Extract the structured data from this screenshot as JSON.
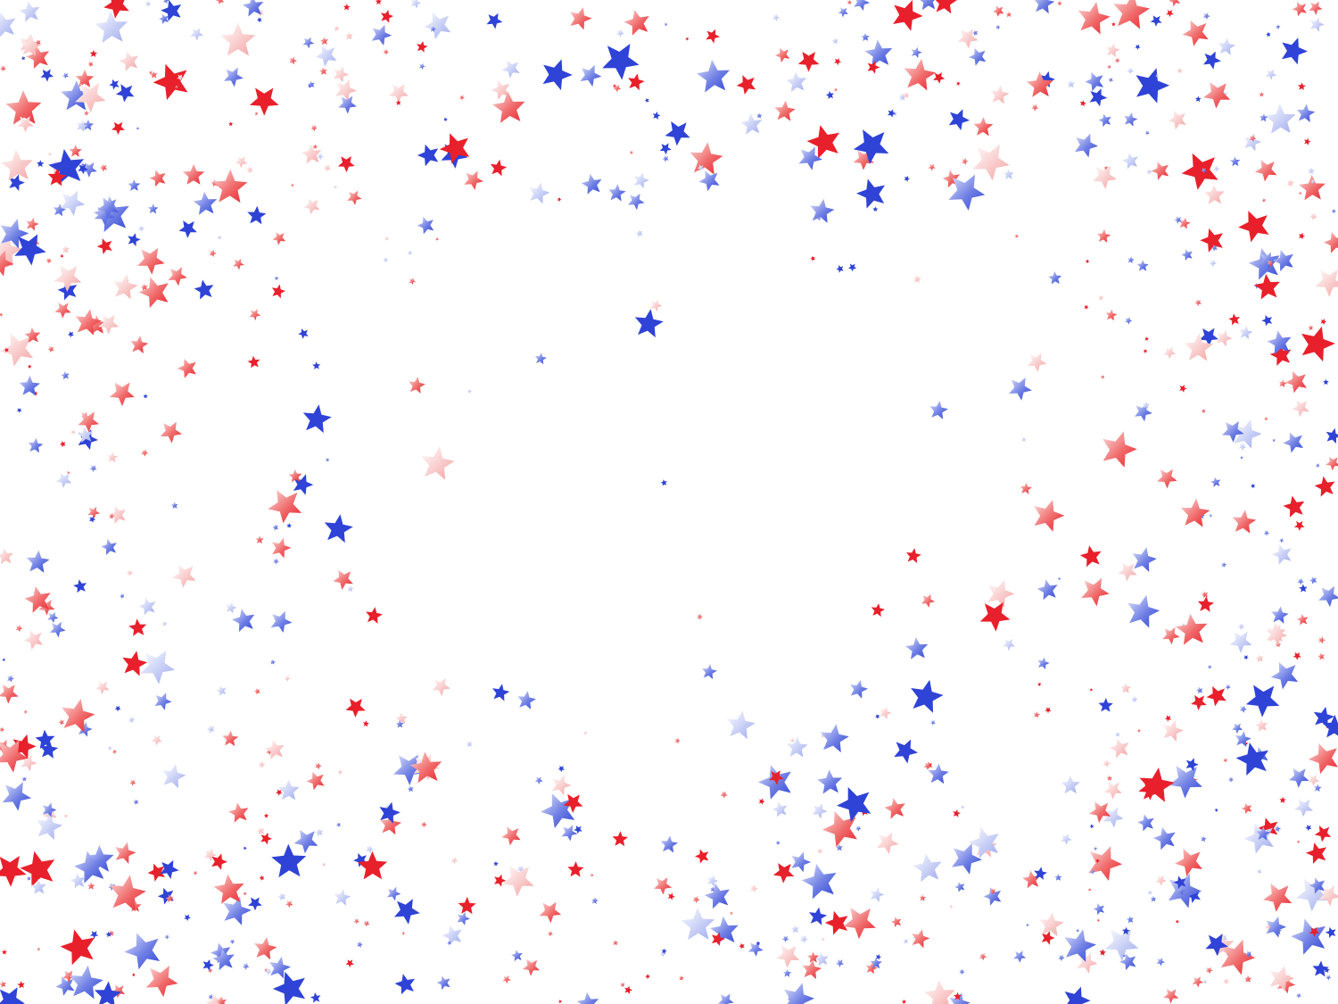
{
  "scene": {
    "subject": "star-confetti-frame",
    "background_color": "#ffffff",
    "colors": {
      "red": "#e8202b",
      "blue": "#2f43d6",
      "red_light": "#f4b3b3",
      "blue_light": "#b9c3f2"
    },
    "icon": "star-icon"
  }
}
